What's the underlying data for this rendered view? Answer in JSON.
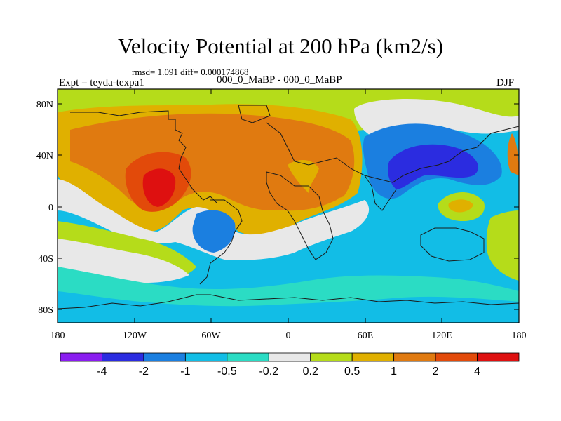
{
  "figure": {
    "title": "Velocity Potential at 200 hPa (km2/s)",
    "stats": "rmsd= 1.091 diff= 0.000174868",
    "experiment": "Expt = teyda-texpa1",
    "cases": "000_0_MaBP - 000_0_MaBP",
    "season": "DJF"
  },
  "map": {
    "projection": "cylindrical equidistant",
    "lon_ticks": [
      "180",
      "120W",
      "60W",
      "0",
      "60E",
      "120E",
      "180"
    ],
    "lat_ticks": [
      "80N",
      "40N",
      "0",
      "40S",
      "80S"
    ],
    "regions": [
      {
        "name": "polar-north-green",
        "level": "0.2 to 0.5"
      },
      {
        "name": "north-hemisphere-band",
        "level": "0.5 to 1"
      },
      {
        "name": "eastern-pacific-orange",
        "level": "1 to 2"
      },
      {
        "name": "eastern-pacific-core",
        "level": "2 to 4"
      },
      {
        "name": "africa-eurasia-orange",
        "level": "1 to 2"
      },
      {
        "name": "southern-ocean-band",
        "level": "-1 to -0.5"
      },
      {
        "name": "asia-blue-trough",
        "level": "-1 to -2"
      },
      {
        "name": "asia-blue-core",
        "level": "-2 to -4"
      }
    ]
  },
  "colorbar": {
    "levels": [
      "-4",
      "-2",
      "-1",
      "-0.5",
      "-0.2",
      "0.2",
      "0.5",
      "1",
      "2",
      "4"
    ],
    "colors": [
      "#8a1df0",
      "#2b2ce0",
      "#1b7fe0",
      "#12bde6",
      "#2bdcc4",
      "#e8e8e8",
      "#b5dc1a",
      "#e0b000",
      "#e07a10",
      "#e24a0a",
      "#de1010"
    ]
  },
  "palette": {
    "coastline": "#1a1a1a",
    "frame": "#000000"
  }
}
